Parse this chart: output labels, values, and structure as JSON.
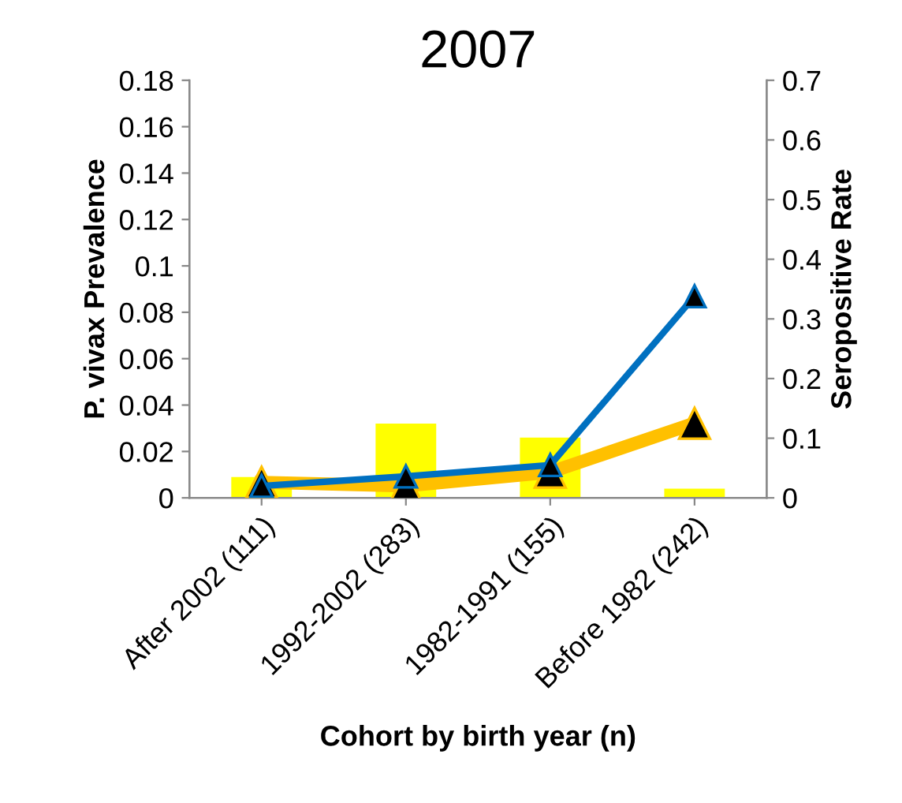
{
  "chart_data": {
    "type": "bar",
    "title": "2007",
    "xlabel": "Cohort by birth year (n)",
    "ylabel": "P. vivax Prevalence",
    "y2label": "Seropositive Rate",
    "categories": [
      "After 2002 (111)",
      "1992-2002 (283)",
      "1982-1991 (155)",
      "Before 1982 (242)"
    ],
    "ylim": [
      0,
      0.18
    ],
    "yticks": [
      0,
      0.02,
      0.04,
      0.06,
      0.08,
      0.1,
      0.12,
      0.14,
      0.16,
      0.18
    ],
    "y2lim": [
      0,
      0.7
    ],
    "y2ticks": [
      0,
      0.1,
      0.2,
      0.3,
      0.4,
      0.5,
      0.6,
      0.7
    ],
    "grid": false,
    "legend": false,
    "marker": "triangle",
    "line_style": "solid",
    "series": [
      {
        "color": "#ffff00",
        "values": [
          0.009,
          0.032,
          0.026,
          0.004
        ]
      },
      {
        "type": "line",
        "axis": "y2",
        "color": "#ffc000",
        "values": [
          0.026,
          0.02,
          0.043,
          0.125
        ]
      },
      {
        "type": "line",
        "axis": "y2",
        "color": "#0070c0",
        "values": [
          0.02,
          0.036,
          0.055,
          0.338
        ]
      }
    ]
  }
}
